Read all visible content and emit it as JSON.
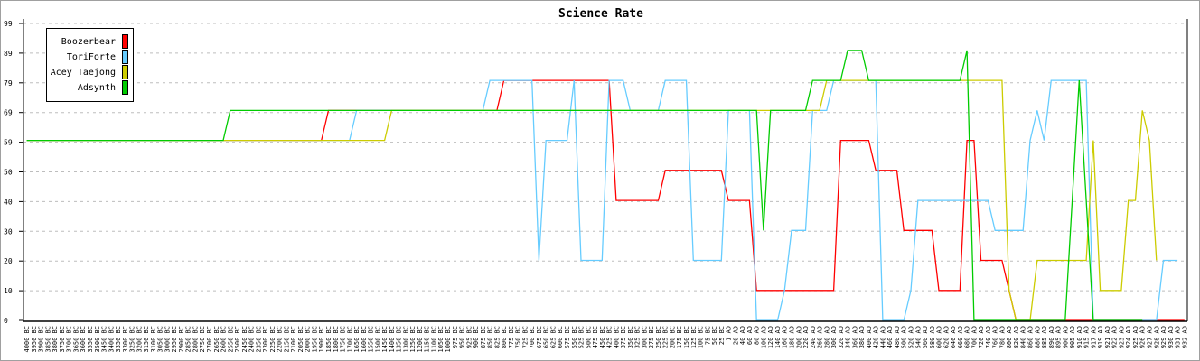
{
  "chart_data": {
    "type": "line",
    "title": "Science Rate",
    "xlabel": "",
    "ylabel": "",
    "ylim": [
      0,
      99
    ],
    "y_ticks": [
      "0",
      "10",
      "20",
      "30",
      "40",
      "50",
      "59",
      "69",
      "79",
      "89",
      "99"
    ],
    "grid": true,
    "legend_placement": "top-left",
    "x": [
      "4000 BC",
      "3950 BC",
      "3900 BC",
      "3850 BC",
      "3800 BC",
      "3750 BC",
      "3700 BC",
      "3650 BC",
      "3600 BC",
      "3550 BC",
      "3500 BC",
      "3450 BC",
      "3400 BC",
      "3350 BC",
      "3300 BC",
      "3250 BC",
      "3200 BC",
      "3150 BC",
      "3100 BC",
      "3050 BC",
      "3000 BC",
      "2950 BC",
      "2900 BC",
      "2850 BC",
      "2800 BC",
      "2750 BC",
      "2700 BC",
      "2650 BC",
      "2600 BC",
      "2550 BC",
      "2500 BC",
      "2450 BC",
      "2400 BC",
      "2350 BC",
      "2300 BC",
      "2250 BC",
      "2200 BC",
      "2150 BC",
      "2100 BC",
      "2050 BC",
      "2000 BC",
      "1950 BC",
      "1900 BC",
      "1850 BC",
      "1800 BC",
      "1750 BC",
      "1700 BC",
      "1650 BC",
      "1600 BC",
      "1550 BC",
      "1500 BC",
      "1450 BC",
      "1400 BC",
      "1350 BC",
      "1300 BC",
      "1250 BC",
      "1200 BC",
      "1150 BC",
      "1100 BC",
      "1050 BC",
      "1000 BC",
      "975 BC",
      "950 BC",
      "925 BC",
      "900 BC",
      "875 BC",
      "850 BC",
      "825 BC",
      "800 BC",
      "775 BC",
      "750 BC",
      "725 BC",
      "700 BC",
      "675 BC",
      "650 BC",
      "625 BC",
      "600 BC",
      "575 BC",
      "550 BC",
      "525 BC",
      "500 BC",
      "475 BC",
      "450 BC",
      "425 BC",
      "400 BC",
      "375 BC",
      "350 BC",
      "325 BC",
      "300 BC",
      "275 BC",
      "250 BC",
      "225 BC",
      "200 BC",
      "175 BC",
      "150 BC",
      "125 BC",
      "100 BC",
      "75 BC",
      "50 BC",
      "25 BC",
      "1 AD",
      "20 AD",
      "40 AD",
      "60 AD",
      "80 AD",
      "100 AD",
      "120 AD",
      "140 AD",
      "160 AD",
      "180 AD",
      "200 AD",
      "220 AD",
      "240 AD",
      "260 AD",
      "280 AD",
      "300 AD",
      "320 AD",
      "340 AD",
      "360 AD",
      "380 AD",
      "400 AD",
      "420 AD",
      "440 AD",
      "460 AD",
      "480 AD",
      "500 AD",
      "520 AD",
      "540 AD",
      "560 AD",
      "580 AD",
      "600 AD",
      "620 AD",
      "640 AD",
      "660 AD",
      "680 AD",
      "700 AD",
      "720 AD",
      "740 AD",
      "760 AD",
      "780 AD",
      "800 AD",
      "820 AD",
      "840 AD",
      "860 AD",
      "880 AD",
      "885 AD",
      "890 AD",
      "895 AD",
      "900 AD",
      "905 AD",
      "910 AD",
      "915 AD",
      "917 AD",
      "919 AD",
      "921 AD",
      "922 AD",
      "923 AD",
      "924 AD",
      "925 AD",
      "926 AD",
      "927 AD",
      "928 AD",
      "929 AD",
      "930 AD",
      "931 AD",
      "932 AD"
    ],
    "series": [
      {
        "name": "Boozerbear",
        "color": "#ff0000",
        "values": [
          60,
          60,
          60,
          60,
          60,
          60,
          60,
          60,
          60,
          60,
          60,
          60,
          60,
          60,
          60,
          60,
          60,
          60,
          60,
          60,
          60,
          60,
          60,
          60,
          60,
          60,
          60,
          60,
          60,
          60,
          60,
          60,
          60,
          60,
          60,
          60,
          60,
          60,
          60,
          60,
          60,
          60,
          60,
          70,
          70,
          70,
          70,
          70,
          70,
          70,
          70,
          70,
          70,
          70,
          70,
          70,
          70,
          70,
          70,
          70,
          70,
          70,
          70,
          70,
          70,
          70,
          70,
          70,
          80,
          80,
          80,
          80,
          80,
          80,
          80,
          80,
          80,
          80,
          80,
          80,
          80,
          80,
          80,
          80,
          40,
          40,
          40,
          40,
          40,
          40,
          40,
          50,
          50,
          50,
          50,
          50,
          50,
          50,
          50,
          50,
          40,
          40,
          40,
          40,
          10,
          10,
          10,
          10,
          10,
          10,
          10,
          10,
          10,
          10,
          10,
          10,
          60,
          60,
          60,
          60,
          60,
          50,
          50,
          50,
          50,
          30,
          30,
          30,
          30,
          30,
          10,
          10,
          10,
          10,
          60,
          60,
          20,
          20,
          20,
          20,
          10,
          0,
          0,
          0,
          0,
          0,
          0,
          0,
          0,
          0,
          0,
          0,
          0,
          0,
          0,
          0,
          0,
          0,
          0,
          0,
          0,
          0,
          0,
          0,
          0,
          0
        ]
      },
      {
        "name": "ToriForte",
        "color": "#66ccff",
        "values": [
          60,
          60,
          60,
          60,
          60,
          60,
          60,
          60,
          60,
          60,
          60,
          60,
          60,
          60,
          60,
          60,
          60,
          60,
          60,
          60,
          60,
          60,
          60,
          60,
          60,
          60,
          60,
          60,
          60,
          60,
          60,
          60,
          60,
          60,
          60,
          60,
          60,
          60,
          60,
          60,
          60,
          60,
          60,
          60,
          60,
          60,
          60,
          70,
          70,
          70,
          70,
          70,
          70,
          70,
          70,
          70,
          70,
          70,
          70,
          70,
          70,
          70,
          70,
          70,
          70,
          70,
          80,
          80,
          80,
          80,
          80,
          80,
          80,
          20,
          60,
          60,
          60,
          60,
          80,
          20,
          20,
          20,
          20,
          80,
          80,
          80,
          70,
          70,
          70,
          70,
          70,
          80,
          80,
          80,
          80,
          20,
          20,
          20,
          20,
          20,
          70,
          70,
          70,
          70,
          0,
          0,
          0,
          0,
          10,
          30,
          30,
          30,
          70,
          70,
          70,
          80,
          80,
          80,
          80,
          80,
          80,
          80,
          0,
          0,
          0,
          0,
          10,
          40,
          40,
          40,
          40,
          40,
          40,
          40,
          40,
          40,
          40,
          40,
          30,
          30,
          30,
          30,
          30,
          60,
          70,
          60,
          80,
          80,
          80,
          80,
          80,
          80,
          0,
          0,
          0,
          0,
          0,
          0,
          0,
          0,
          0,
          0,
          20,
          20,
          20,
          null
        ]
      },
      {
        "name": "Acey Taejong",
        "color": "#cccc00",
        "values": [
          60,
          60,
          60,
          60,
          60,
          60,
          60,
          60,
          60,
          60,
          60,
          60,
          60,
          60,
          60,
          60,
          60,
          60,
          60,
          60,
          60,
          60,
          60,
          60,
          60,
          60,
          60,
          60,
          60,
          60,
          60,
          60,
          60,
          60,
          60,
          60,
          60,
          60,
          60,
          60,
          60,
          60,
          60,
          60,
          60,
          60,
          60,
          60,
          60,
          60,
          60,
          60,
          70,
          70,
          70,
          70,
          70,
          70,
          70,
          70,
          70,
          70,
          70,
          70,
          70,
          70,
          70,
          70,
          70,
          70,
          70,
          70,
          70,
          70,
          70,
          70,
          70,
          70,
          70,
          70,
          70,
          70,
          70,
          70,
          70,
          70,
          70,
          70,
          70,
          70,
          70,
          70,
          70,
          70,
          70,
          70,
          70,
          70,
          70,
          70,
          70,
          70,
          70,
          70,
          70,
          70,
          70,
          70,
          70,
          70,
          70,
          70,
          70,
          70,
          80,
          80,
          80,
          80,
          80,
          80,
          80,
          80,
          80,
          80,
          80,
          80,
          80,
          80,
          80,
          80,
          80,
          80,
          80,
          80,
          80,
          80,
          80,
          80,
          80,
          80,
          10,
          0,
          0,
          0,
          20,
          20,
          20,
          20,
          20,
          20,
          20,
          20,
          60,
          10,
          10,
          10,
          10,
          40,
          40,
          70,
          60,
          20,
          null,
          null,
          null,
          null
        ]
      },
      {
        "name": "Adsynth",
        "color": "#00cc00",
        "values": [
          60,
          60,
          60,
          60,
          60,
          60,
          60,
          60,
          60,
          60,
          60,
          60,
          60,
          60,
          60,
          60,
          60,
          60,
          60,
          60,
          60,
          60,
          60,
          60,
          60,
          60,
          60,
          60,
          60,
          70,
          70,
          70,
          70,
          70,
          70,
          70,
          70,
          70,
          70,
          70,
          70,
          70,
          70,
          70,
          70,
          70,
          70,
          70,
          70,
          70,
          70,
          70,
          70,
          70,
          70,
          70,
          70,
          70,
          70,
          70,
          70,
          70,
          70,
          70,
          70,
          70,
          70,
          70,
          70,
          70,
          70,
          70,
          70,
          70,
          70,
          70,
          70,
          70,
          70,
          70,
          70,
          70,
          70,
          70,
          70,
          70,
          70,
          70,
          70,
          70,
          70,
          70,
          70,
          70,
          70,
          70,
          70,
          70,
          70,
          70,
          70,
          70,
          70,
          70,
          70,
          30,
          70,
          70,
          70,
          70,
          70,
          70,
          80,
          80,
          80,
          80,
          80,
          90,
          90,
          90,
          80,
          80,
          80,
          80,
          80,
          80,
          80,
          80,
          80,
          80,
          80,
          80,
          80,
          80,
          90,
          0,
          0,
          0,
          0,
          0,
          0,
          0,
          0,
          0,
          0,
          0,
          0,
          0,
          0,
          40,
          80,
          40,
          0,
          0,
          0,
          0,
          0,
          0,
          0,
          0,
          null,
          null,
          null,
          null,
          null,
          null
        ]
      }
    ]
  }
}
